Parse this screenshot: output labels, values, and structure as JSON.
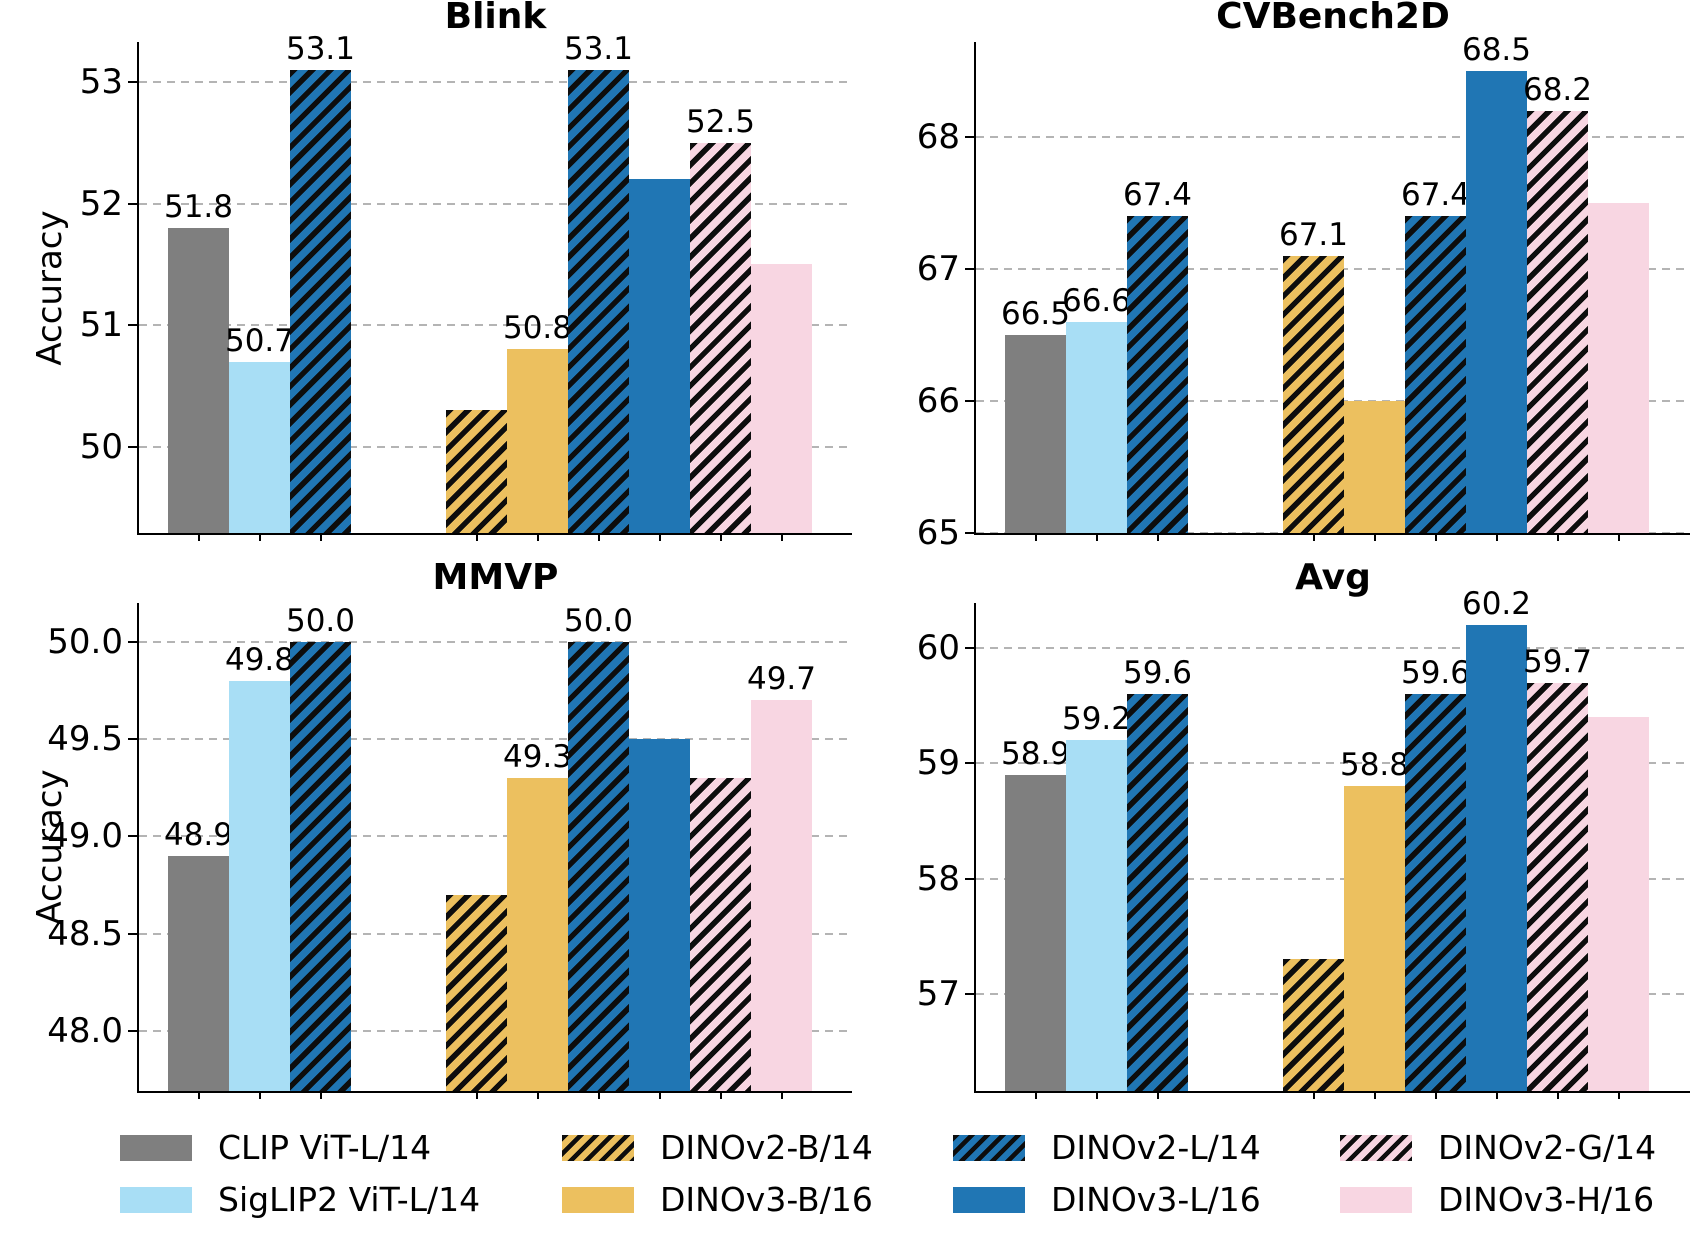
{
  "figure": {
    "hatch_color": "#0d0d0d",
    "grid_color": "#b4b4b4",
    "background": "#ffffff",
    "series": [
      {
        "name": "CLIP ViT-L/14",
        "color": "#7f7f7f",
        "hatch": false
      },
      {
        "name": "SigLIP2 ViT-L/14",
        "color": "#a8def5",
        "hatch": false
      },
      {
        "name": "DINOv2-L/14",
        "color": "#2076b4",
        "hatch": true
      },
      {
        "name": "DINOv2-B/14",
        "color": "#ecc05f",
        "hatch": true
      },
      {
        "name": "DINOv3-B/16",
        "color": "#ecc05f",
        "hatch": false
      },
      {
        "name": "DINOv2-L/14",
        "color": "#2076b4",
        "hatch": true
      },
      {
        "name": "DINOv3-L/16",
        "color": "#2076b4",
        "hatch": false
      },
      {
        "name": "DINOv2-G/14",
        "color": "#f8d6e2",
        "hatch": true
      },
      {
        "name": "DINOv3-H/16",
        "color": "#f8d6e2",
        "hatch": false
      }
    ],
    "legend": {
      "position": "bottom",
      "entries": [
        {
          "label": "CLIP ViT-L/14",
          "color": "#7f7f7f",
          "hatch": false,
          "row": 0,
          "col": 0
        },
        {
          "label": "SigLIP2 ViT-L/14",
          "color": "#a8def5",
          "hatch": false,
          "row": 1,
          "col": 0
        },
        {
          "label": "DINOv2-B/14",
          "color": "#ecc05f",
          "hatch": true,
          "row": 0,
          "col": 1
        },
        {
          "label": "DINOv3-B/16",
          "color": "#ecc05f",
          "hatch": false,
          "row": 1,
          "col": 1
        },
        {
          "label": "DINOv2-L/14",
          "color": "#2076b4",
          "hatch": true,
          "row": 0,
          "col": 2
        },
        {
          "label": "DINOv3-L/16",
          "color": "#2076b4",
          "hatch": false,
          "row": 1,
          "col": 2
        },
        {
          "label": "DINOv2-G/14",
          "color": "#f8d6e2",
          "hatch": true,
          "row": 0,
          "col": 3
        },
        {
          "label": "DINOv3-H/16",
          "color": "#f8d6e2",
          "hatch": false,
          "row": 1,
          "col": 3
        }
      ]
    }
  },
  "chart_data": [
    {
      "type": "bar",
      "title": "Blink",
      "xlabel": "",
      "ylabel": "Accuracy",
      "categories": [
        "CLIP ViT-L/14",
        "SigLIP2 ViT-L/14",
        "DINOv2-L/14",
        "DINOv2-B/14",
        "DINOv3-B/16",
        "DINOv2-L/14",
        "DINOv3-L/16",
        "DINOv2-G/14",
        "DINOv3-H/16"
      ],
      "values": [
        51.8,
        50.7,
        53.1,
        50.3,
        50.8,
        53.1,
        52.2,
        52.5,
        51.5
      ],
      "bar_labels": [
        "51.8",
        "50.7",
        "53.1",
        "",
        "50.8",
        "53.1",
        "",
        "52.5",
        ""
      ],
      "ylim": [
        49.29,
        53.33
      ],
      "yticks": [
        50,
        51,
        52,
        53
      ],
      "ytick_labels": [
        "50",
        "51",
        "52",
        "53"
      ],
      "grid": "dashed-horizontal"
    },
    {
      "type": "bar",
      "title": "CVBench2D",
      "xlabel": "",
      "ylabel": "",
      "categories": [
        "CLIP ViT-L/14",
        "SigLIP2 ViT-L/14",
        "DINOv2-L/14",
        "DINOv2-B/14",
        "DINOv3-B/16",
        "DINOv2-L/14",
        "DINOv3-L/16",
        "DINOv2-G/14",
        "DINOv3-H/16"
      ],
      "values": [
        66.5,
        66.6,
        67.4,
        67.1,
        66.0,
        67.4,
        68.5,
        68.2,
        67.5
      ],
      "bar_labels": [
        "66.5",
        "66.6",
        "67.4",
        "67.1",
        "",
        "67.4",
        "68.5",
        "68.2",
        ""
      ],
      "ylim": [
        65.0,
        68.72
      ],
      "yticks": [
        65,
        66,
        67,
        68
      ],
      "ytick_labels": [
        "65",
        "66",
        "67",
        "68"
      ],
      "grid": "dashed-horizontal"
    },
    {
      "type": "bar",
      "title": "MMVP",
      "xlabel": "",
      "ylabel": "Accuracy",
      "categories": [
        "CLIP ViT-L/14",
        "SigLIP2 ViT-L/14",
        "DINOv2-L/14",
        "DINOv2-B/14",
        "DINOv3-B/16",
        "DINOv2-L/14",
        "DINOv3-L/16",
        "DINOv2-G/14",
        "DINOv3-H/16"
      ],
      "values": [
        48.9,
        49.8,
        50.0,
        48.7,
        49.3,
        50.0,
        49.5,
        49.3,
        49.7
      ],
      "bar_labels": [
        "48.9",
        "49.8",
        "50.0",
        "",
        "49.3",
        "50.0",
        "",
        "",
        "49.7"
      ],
      "ylim": [
        47.69,
        50.2
      ],
      "yticks": [
        48.0,
        48.5,
        49.0,
        49.5,
        50.0
      ],
      "ytick_labels": [
        "48.0",
        "48.5",
        "49.0",
        "49.5",
        "50.0"
      ],
      "grid": "dashed-horizontal"
    },
    {
      "type": "bar",
      "title": "Avg",
      "xlabel": "",
      "ylabel": "",
      "categories": [
        "CLIP ViT-L/14",
        "SigLIP2 ViT-L/14",
        "DINOv2-L/14",
        "DINOv2-B/14",
        "DINOv3-B/16",
        "DINOv2-L/14",
        "DINOv3-L/16",
        "DINOv2-G/14",
        "DINOv3-H/16"
      ],
      "values": [
        58.9,
        59.2,
        59.6,
        57.3,
        58.8,
        59.6,
        60.2,
        59.7,
        59.4
      ],
      "bar_labels": [
        "58.9",
        "59.2",
        "59.6",
        "",
        "58.8",
        "59.6",
        "60.2",
        "59.7",
        ""
      ],
      "ylim": [
        56.16,
        60.39
      ],
      "yticks": [
        57,
        58,
        59,
        60
      ],
      "ytick_labels": [
        "57",
        "58",
        "59",
        "60"
      ],
      "grid": "dashed-horizontal"
    }
  ]
}
